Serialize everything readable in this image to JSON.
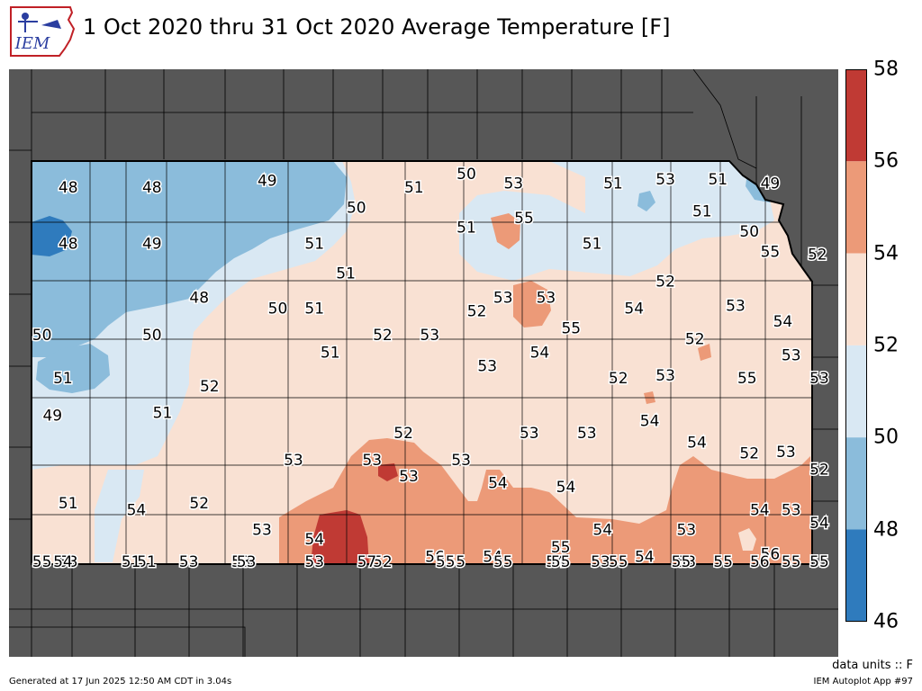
{
  "header": {
    "title": "1 Oct 2020 thru 31 Oct 2020 Average Temperature [F]",
    "logo_text": "IEM"
  },
  "colors": {
    "background_states": "#575757",
    "county_lines": "#000000",
    "ocean_frame": "#ffffff",
    "band_46_48": "#2f7bbd",
    "band_48_50": "#8bbcdb",
    "band_50_52": "#d9e8f3",
    "band_52_54": "#f9e1d3",
    "band_54_56": "#ec9a78",
    "band_56_58": "#c03a34"
  },
  "colorbar": {
    "min": 46,
    "max": 58,
    "ticks": [
      "58",
      "56",
      "54",
      "52",
      "50",
      "48",
      "46"
    ],
    "units_text": "data units :: F"
  },
  "stations": [
    {
      "value": "48",
      "lon": -101.7,
      "lat": 39.8
    },
    {
      "value": "48",
      "lon": -100.9,
      "lat": 39.8
    },
    {
      "value": "49",
      "lon": -99.8,
      "lat": 39.85
    },
    {
      "value": "51",
      "lon": -98.4,
      "lat": 39.8
    },
    {
      "value": "50",
      "lon": -97.9,
      "lat": 39.9
    },
    {
      "value": "53",
      "lon": -97.45,
      "lat": 39.83
    },
    {
      "value": "51",
      "lon": -96.5,
      "lat": 39.83
    },
    {
      "value": "53",
      "lon": -96.0,
      "lat": 39.86
    },
    {
      "value": "51",
      "lon": -95.5,
      "lat": 39.86
    },
    {
      "value": "49",
      "lon": -95.0,
      "lat": 39.83
    },
    {
      "value": "50",
      "lon": -98.95,
      "lat": 39.65
    },
    {
      "value": "55",
      "lon": -97.35,
      "lat": 39.57
    },
    {
      "value": "51",
      "lon": -97.9,
      "lat": 39.5
    },
    {
      "value": "51",
      "lon": -95.65,
      "lat": 39.62
    },
    {
      "value": "50",
      "lon": -95.2,
      "lat": 39.47
    },
    {
      "value": "48",
      "lon": -101.7,
      "lat": 39.38
    },
    {
      "value": "49",
      "lon": -100.9,
      "lat": 39.38
    },
    {
      "value": "51",
      "lon": -99.35,
      "lat": 39.38
    },
    {
      "value": "51",
      "lon": -96.7,
      "lat": 39.38
    },
    {
      "value": "55",
      "lon": -95.0,
      "lat": 39.32
    },
    {
      "value": "52",
      "lon": -94.55,
      "lat": 39.3
    },
    {
      "value": "51",
      "lon": -99.05,
      "lat": 39.16
    },
    {
      "value": "52",
      "lon": -96.0,
      "lat": 39.1
    },
    {
      "value": "48",
      "lon": -100.45,
      "lat": 38.98
    },
    {
      "value": "50",
      "lon": -99.7,
      "lat": 38.9
    },
    {
      "value": "51",
      "lon": -99.35,
      "lat": 38.9
    },
    {
      "value": "53",
      "lon": -97.55,
      "lat": 38.98
    },
    {
      "value": "52",
      "lon": -97.8,
      "lat": 38.88
    },
    {
      "value": "53",
      "lon": -97.14,
      "lat": 38.98
    },
    {
      "value": "54",
      "lon": -96.3,
      "lat": 38.9
    },
    {
      "value": "53",
      "lon": -95.33,
      "lat": 38.92
    },
    {
      "value": "54",
      "lon": -94.88,
      "lat": 38.8
    },
    {
      "value": "50",
      "lon": -101.95,
      "lat": 38.7
    },
    {
      "value": "50",
      "lon": -100.9,
      "lat": 38.7
    },
    {
      "value": "52",
      "lon": -98.7,
      "lat": 38.7
    },
    {
      "value": "53",
      "lon": -98.25,
      "lat": 38.7
    },
    {
      "value": "55",
      "lon": -96.9,
      "lat": 38.75
    },
    {
      "value": "52",
      "lon": -95.72,
      "lat": 38.67
    },
    {
      "value": "51",
      "lon": -99.2,
      "lat": 38.57
    },
    {
      "value": "54",
      "lon": -97.2,
      "lat": 38.57
    },
    {
      "value": "53",
      "lon": -94.8,
      "lat": 38.55
    },
    {
      "value": "53",
      "lon": -97.7,
      "lat": 38.47
    },
    {
      "value": "53",
      "lon": -96.0,
      "lat": 38.4
    },
    {
      "value": "51",
      "lon": -101.75,
      "lat": 38.38
    },
    {
      "value": "52",
      "lon": -100.35,
      "lat": 38.32
    },
    {
      "value": "52",
      "lon": -96.45,
      "lat": 38.38
    },
    {
      "value": "55",
      "lon": -95.22,
      "lat": 38.38
    },
    {
      "value": "53",
      "lon": -94.45,
      "lat": 38.38
    },
    {
      "value": "49",
      "lon": -101.85,
      "lat": 38.1
    },
    {
      "value": "51",
      "lon": -100.8,
      "lat": 38.12
    },
    {
      "value": "54",
      "lon": -96.15,
      "lat": 38.06
    },
    {
      "value": "52",
      "lon": -98.5,
      "lat": 37.97
    },
    {
      "value": "53",
      "lon": -97.3,
      "lat": 37.97
    },
    {
      "value": "53",
      "lon": -96.75,
      "lat": 37.97
    },
    {
      "value": "54",
      "lon": -95.7,
      "lat": 37.9
    },
    {
      "value": "52",
      "lon": -95.2,
      "lat": 37.82
    },
    {
      "value": "53",
      "lon": -94.85,
      "lat": 37.83
    },
    {
      "value": "53",
      "lon": -99.55,
      "lat": 37.77
    },
    {
      "value": "53",
      "lon": -98.8,
      "lat": 37.77
    },
    {
      "value": "53",
      "lon": -97.95,
      "lat": 37.77
    },
    {
      "value": "52",
      "lon": -94.45,
      "lat": 37.7
    },
    {
      "value": "53",
      "lon": -98.45,
      "lat": 37.65
    },
    {
      "value": "54",
      "lon": -97.6,
      "lat": 37.6
    },
    {
      "value": "54",
      "lon": -96.95,
      "lat": 37.57
    },
    {
      "value": "51",
      "lon": -101.7,
      "lat": 37.45
    },
    {
      "value": "54",
      "lon": -101.05,
      "lat": 37.4
    },
    {
      "value": "52",
      "lon": -100.45,
      "lat": 37.45
    },
    {
      "value": "54",
      "lon": -95.1,
      "lat": 37.4
    },
    {
      "value": "53",
      "lon": -94.8,
      "lat": 37.4
    },
    {
      "value": "54",
      "lon": -94.2,
      "lat": 37.3
    },
    {
      "value": "53",
      "lon": -99.85,
      "lat": 37.25
    },
    {
      "value": "54",
      "lon": -99.35,
      "lat": 37.18
    },
    {
      "value": "54",
      "lon": -96.6,
      "lat": 37.25
    },
    {
      "value": "53",
      "lon": -95.8,
      "lat": 37.25
    },
    {
      "value": "55",
      "lon": -97.0,
      "lat": 37.12
    },
    {
      "value": "56",
      "lon": -98.2,
      "lat": 37.05
    },
    {
      "value": "54",
      "lon": -97.65,
      "lat": 37.05
    },
    {
      "value": "54",
      "lon": -96.2,
      "lat": 37.05
    },
    {
      "value": "56",
      "lon": -95.0,
      "lat": 37.07
    },
    {
      "value": "53",
      "lon": -101.7,
      "lat": 36.95
    },
    {
      "value": "51",
      "lon": -100.95,
      "lat": 36.98
    },
    {
      "value": "53",
      "lon": -100.05,
      "lat": 36.98
    },
    {
      "value": "52",
      "lon": -98.7,
      "lat": 36.97
    },
    {
      "value": "54",
      "lon": -97.05,
      "lat": 36.88
    },
    {
      "value": "53",
      "lon": -96.62,
      "lat": 36.93
    },
    {
      "value": "55",
      "lon": -95.45,
      "lat": 36.9
    },
    {
      "value": "53",
      "lon": -95.8,
      "lat": 36.8
    },
    {
      "value": "55",
      "lon": -94.8,
      "lat": 36.67
    },
    {
      "value": "55",
      "lon": -94.0,
      "lat": 36.65
    },
    {
      "value": "54",
      "lon": -101.75,
      "lat": 36.57
    },
    {
      "value": "53",
      "lon": -100.0,
      "lat": 36.58
    },
    {
      "value": "57",
      "lon": -98.85,
      "lat": 36.57
    },
    {
      "value": "55",
      "lon": -98.0,
      "lat": 36.58
    },
    {
      "value": "55",
      "lon": -97.0,
      "lat": 36.58
    },
    {
      "value": "55",
      "lon": -96.45,
      "lat": 36.58
    },
    {
      "value": "53",
      "lon": -99.35,
      "lat": 36.45
    },
    {
      "value": "51",
      "lon": -101.1,
      "lat": 36.4
    },
    {
      "value": "55",
      "lon": -97.55,
      "lat": 36.4
    },
    {
      "value": "55",
      "lon": -95.85,
      "lat": 36.35
    },
    {
      "value": "55",
      "lon": -94.35,
      "lat": 36.4
    },
    {
      "value": "55",
      "lon": -101.95,
      "lat": 36.22
    },
    {
      "value": "53",
      "lon": -100.55,
      "lat": 36.22
    },
    {
      "value": "55",
      "lon": -98.1,
      "lat": 36.22
    },
    {
      "value": "56",
      "lon": -95.1,
      "lat": 36.25
    }
  ],
  "footer": {
    "generated": "Generated at 17 Jun 2025 12:50 AM CDT in 3.04s",
    "app": "IEM Autoplot App #97"
  }
}
